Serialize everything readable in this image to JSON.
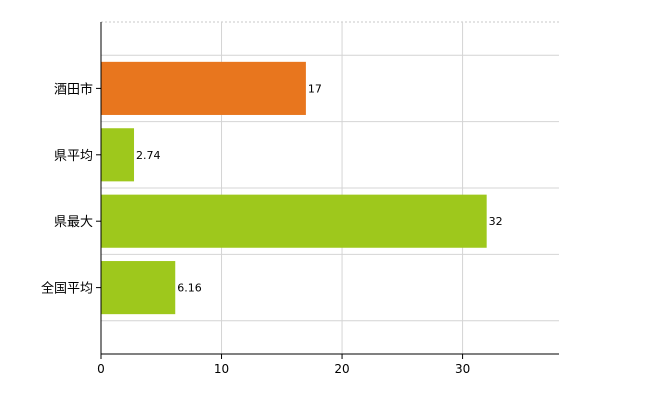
{
  "chart_data": {
    "type": "bar",
    "orientation": "horizontal",
    "categories": [
      "酒田市",
      "県平均",
      "県最大",
      "全国平均"
    ],
    "values": [
      17,
      2.74,
      32,
      6.16
    ],
    "value_labels": [
      "17",
      "2.74",
      "32",
      "6.16"
    ],
    "bar_colors": [
      "#e8761e",
      "#9ec81c",
      "#9ec81c",
      "#9ec81c"
    ],
    "xlim": [
      0,
      38
    ],
    "xticks": [
      0,
      10,
      20,
      30
    ],
    "xtick_labels": [
      "0",
      "10",
      "20",
      "30"
    ],
    "grid": true,
    "legend": false
  }
}
